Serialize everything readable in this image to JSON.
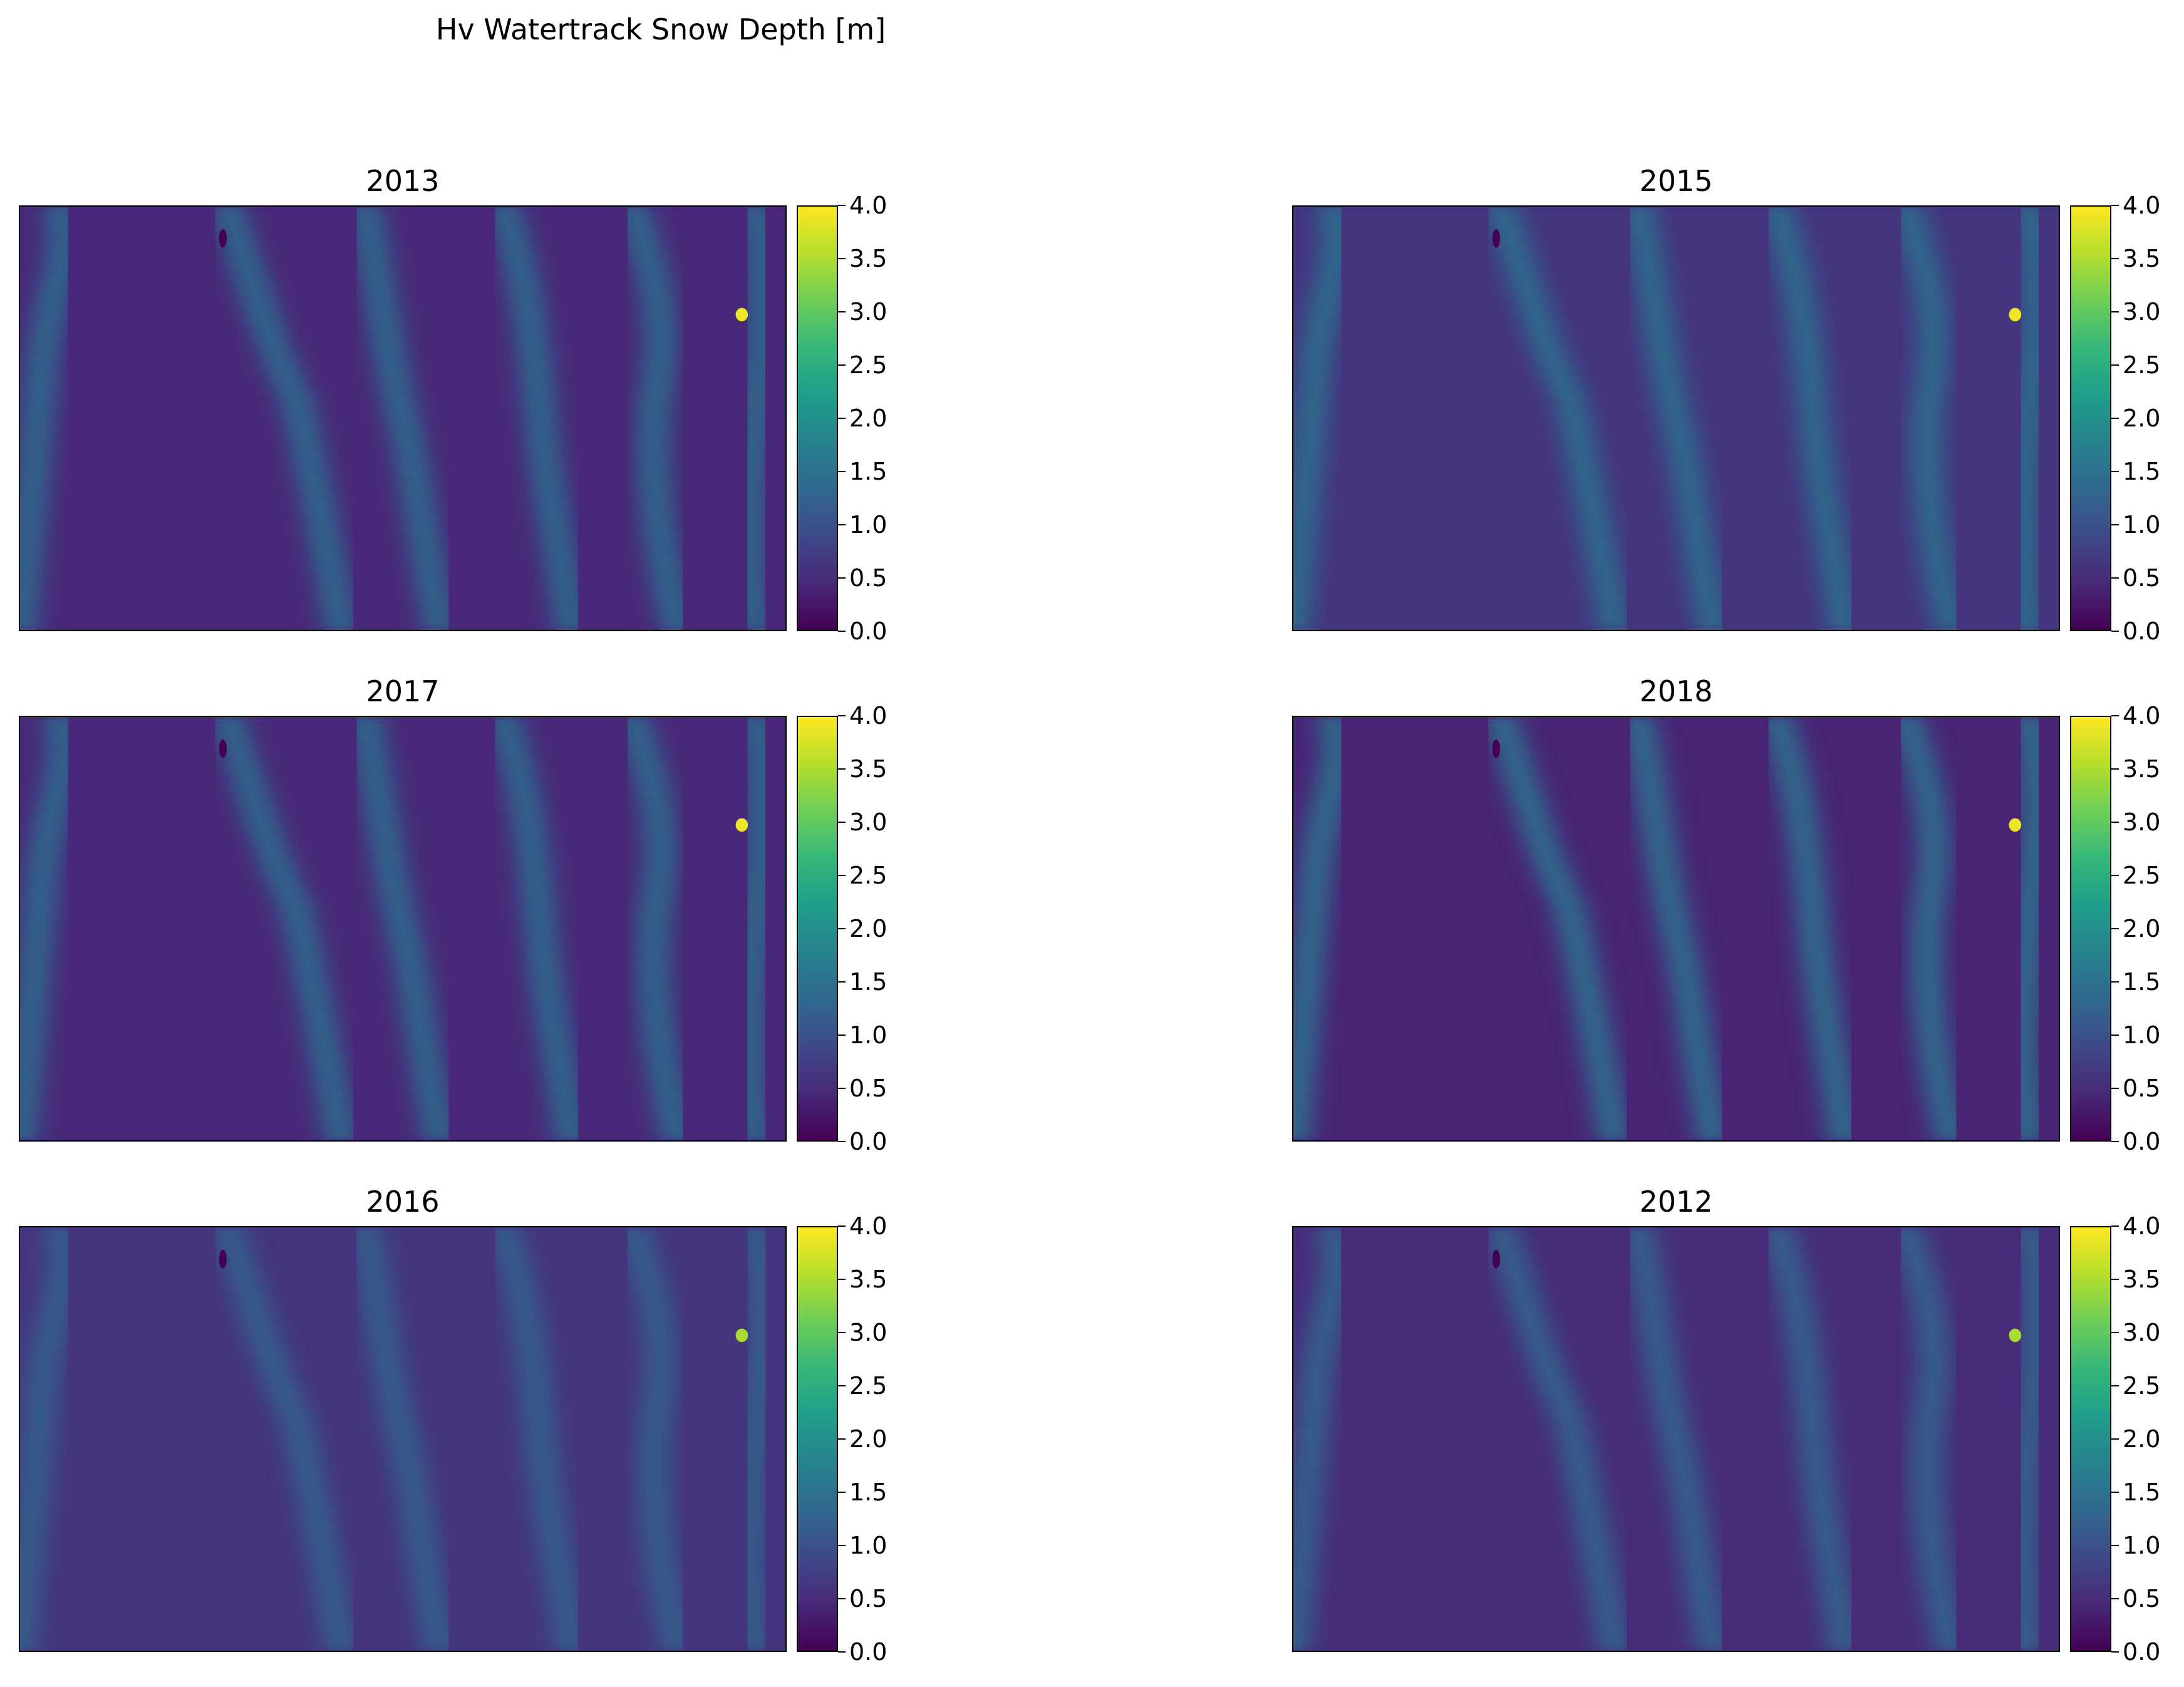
{
  "figure": {
    "title": "Hv Watertrack Snow Depth [m]"
  },
  "chart_data": {
    "type": "heatmap",
    "colormap": "viridis",
    "colormap_stops": [
      "#440154",
      "#482878",
      "#3e4a89",
      "#31688e",
      "#26828e",
      "#1f9e89",
      "#35b779",
      "#6ece58",
      "#b5de2b",
      "#fde725"
    ],
    "colorbar": {
      "range": [
        0.0,
        4.0
      ],
      "ticks": [
        "0.0",
        "0.5",
        "1.0",
        "1.5",
        "2.0",
        "2.5",
        "3.0",
        "3.5",
        "4.0"
      ],
      "tick_values": [
        0.0,
        0.5,
        1.0,
        1.5,
        2.0,
        2.5,
        3.0,
        3.5,
        4.0
      ]
    },
    "axes_ticks_visible": false,
    "panels": [
      {
        "title": "2013",
        "background_depth": 0.45,
        "track_depth": 1.7,
        "hotspot_depth": 3.9
      },
      {
        "title": "2015",
        "background_depth": 0.6,
        "track_depth": 1.7,
        "hotspot_depth": 3.9
      },
      {
        "title": "2017",
        "background_depth": 0.45,
        "track_depth": 1.7,
        "hotspot_depth": 3.9
      },
      {
        "title": "2018",
        "background_depth": 0.4,
        "track_depth": 1.8,
        "hotspot_depth": 3.9
      },
      {
        "title": "2016",
        "background_depth": 0.6,
        "track_depth": 1.4,
        "hotspot_depth": 3.5
      },
      {
        "title": "2012",
        "background_depth": 0.5,
        "track_depth": 1.5,
        "hotspot_depth": 3.5
      }
    ]
  }
}
